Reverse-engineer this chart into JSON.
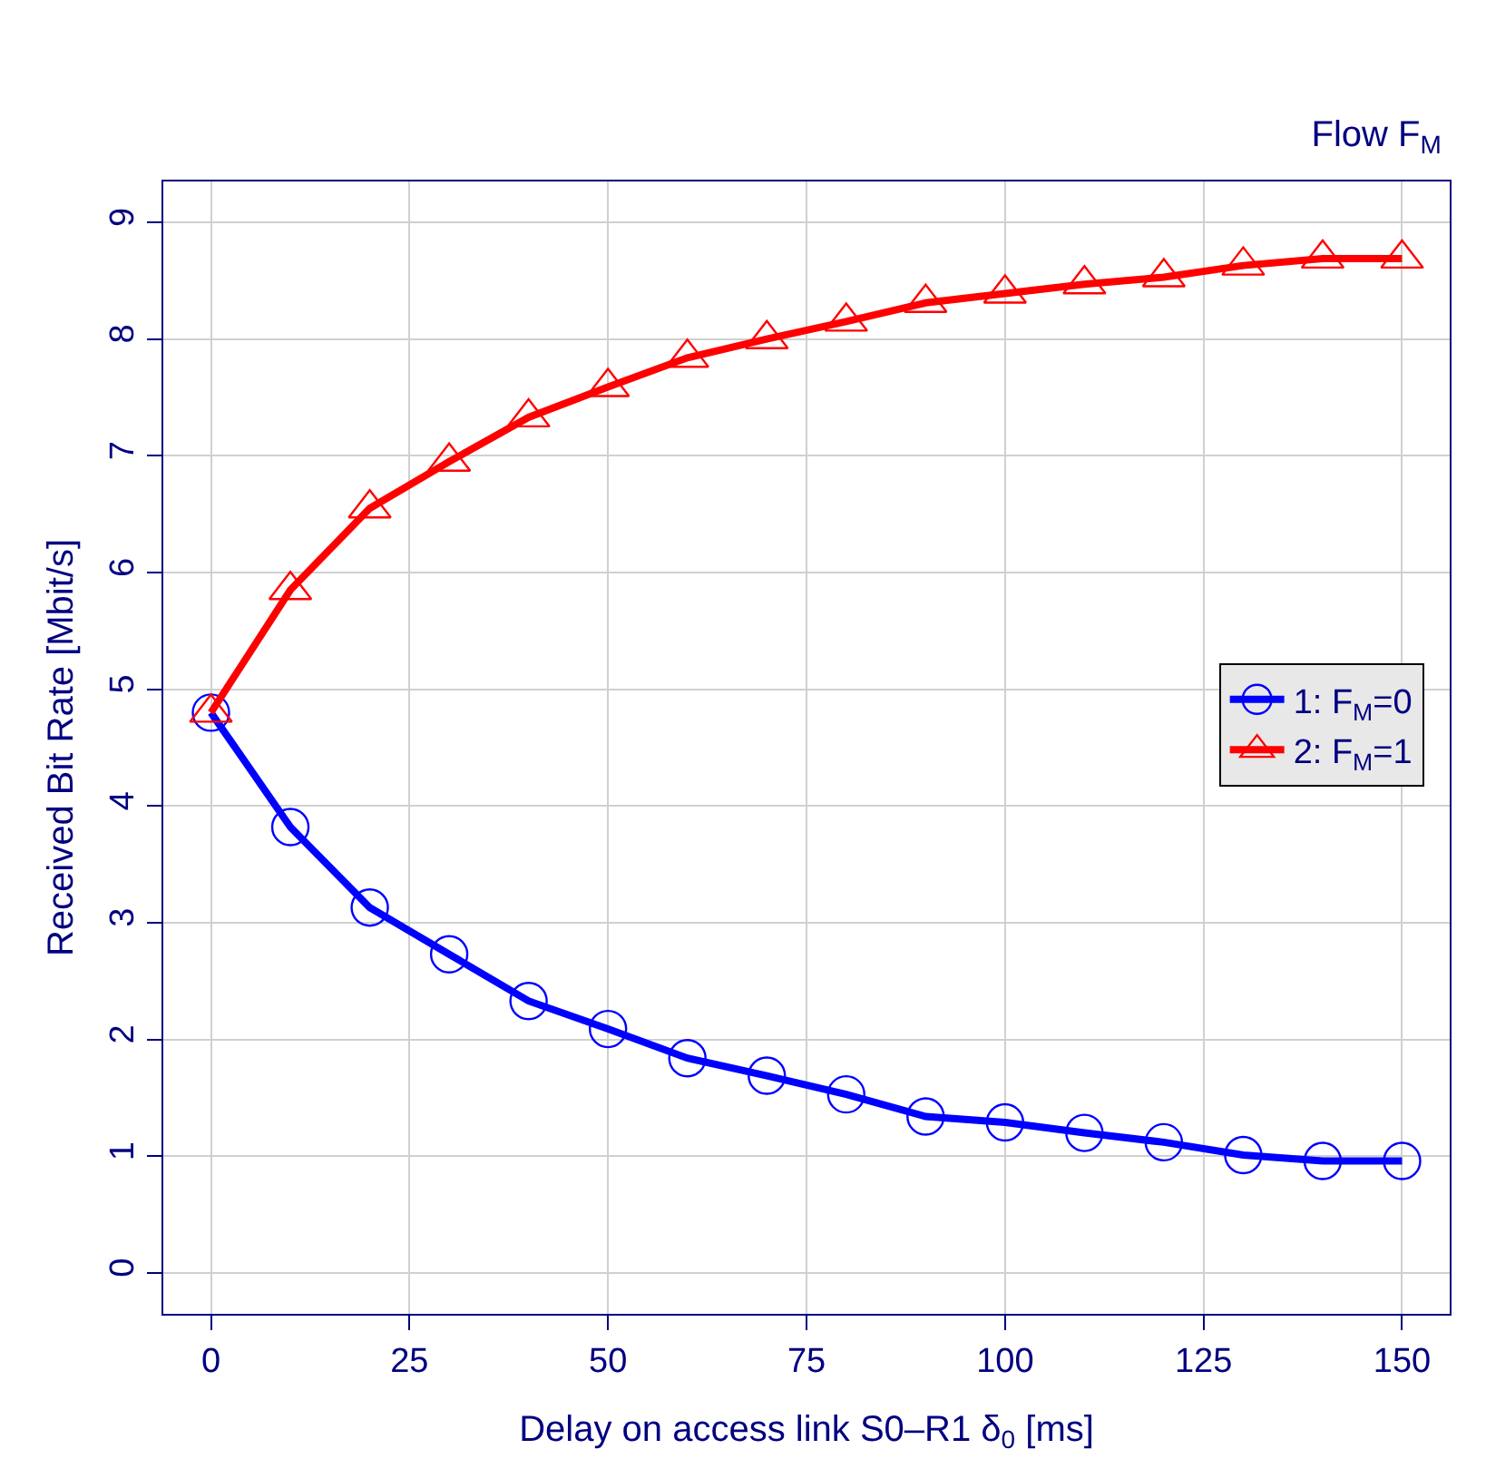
{
  "chart_data": {
    "type": "line",
    "title": "Flow F$_{M}$",
    "xlabel": "Delay on access link S0–R1 δ$_{0}$ [ms]",
    "ylabel": "Received Bit Rate [Mbit/s]",
    "x": [
      0,
      10,
      20,
      30,
      40,
      50,
      60,
      70,
      80,
      90,
      100,
      110,
      120,
      130,
      140,
      150
    ],
    "series": [
      {
        "name": "1: F$_{M}$=0",
        "color": "#0000ff",
        "marker": "circle",
        "values": [
          4.8,
          3.82,
          3.13,
          2.73,
          2.33,
          2.09,
          1.84,
          1.69,
          1.53,
          1.34,
          1.29,
          1.2,
          1.12,
          1.01,
          0.96,
          0.96
        ]
      },
      {
        "name": "2: F$_{M}$=1",
        "color": "#ff0000",
        "marker": "triangle",
        "values": [
          4.8,
          5.85,
          6.55,
          6.95,
          7.33,
          7.59,
          7.84,
          8.0,
          8.15,
          8.31,
          8.39,
          8.47,
          8.53,
          8.63,
          8.69,
          8.69
        ]
      }
    ],
    "xlim": [
      -6,
      156
    ],
    "ylim": [
      -0.35,
      9.35
    ],
    "xticks": [
      0,
      25,
      50,
      75,
      100,
      125,
      150
    ],
    "yticks": [
      0,
      1,
      2,
      3,
      4,
      5,
      6,
      7,
      8,
      9
    ],
    "grid": true,
    "legend": "right",
    "line_style": "solid"
  }
}
